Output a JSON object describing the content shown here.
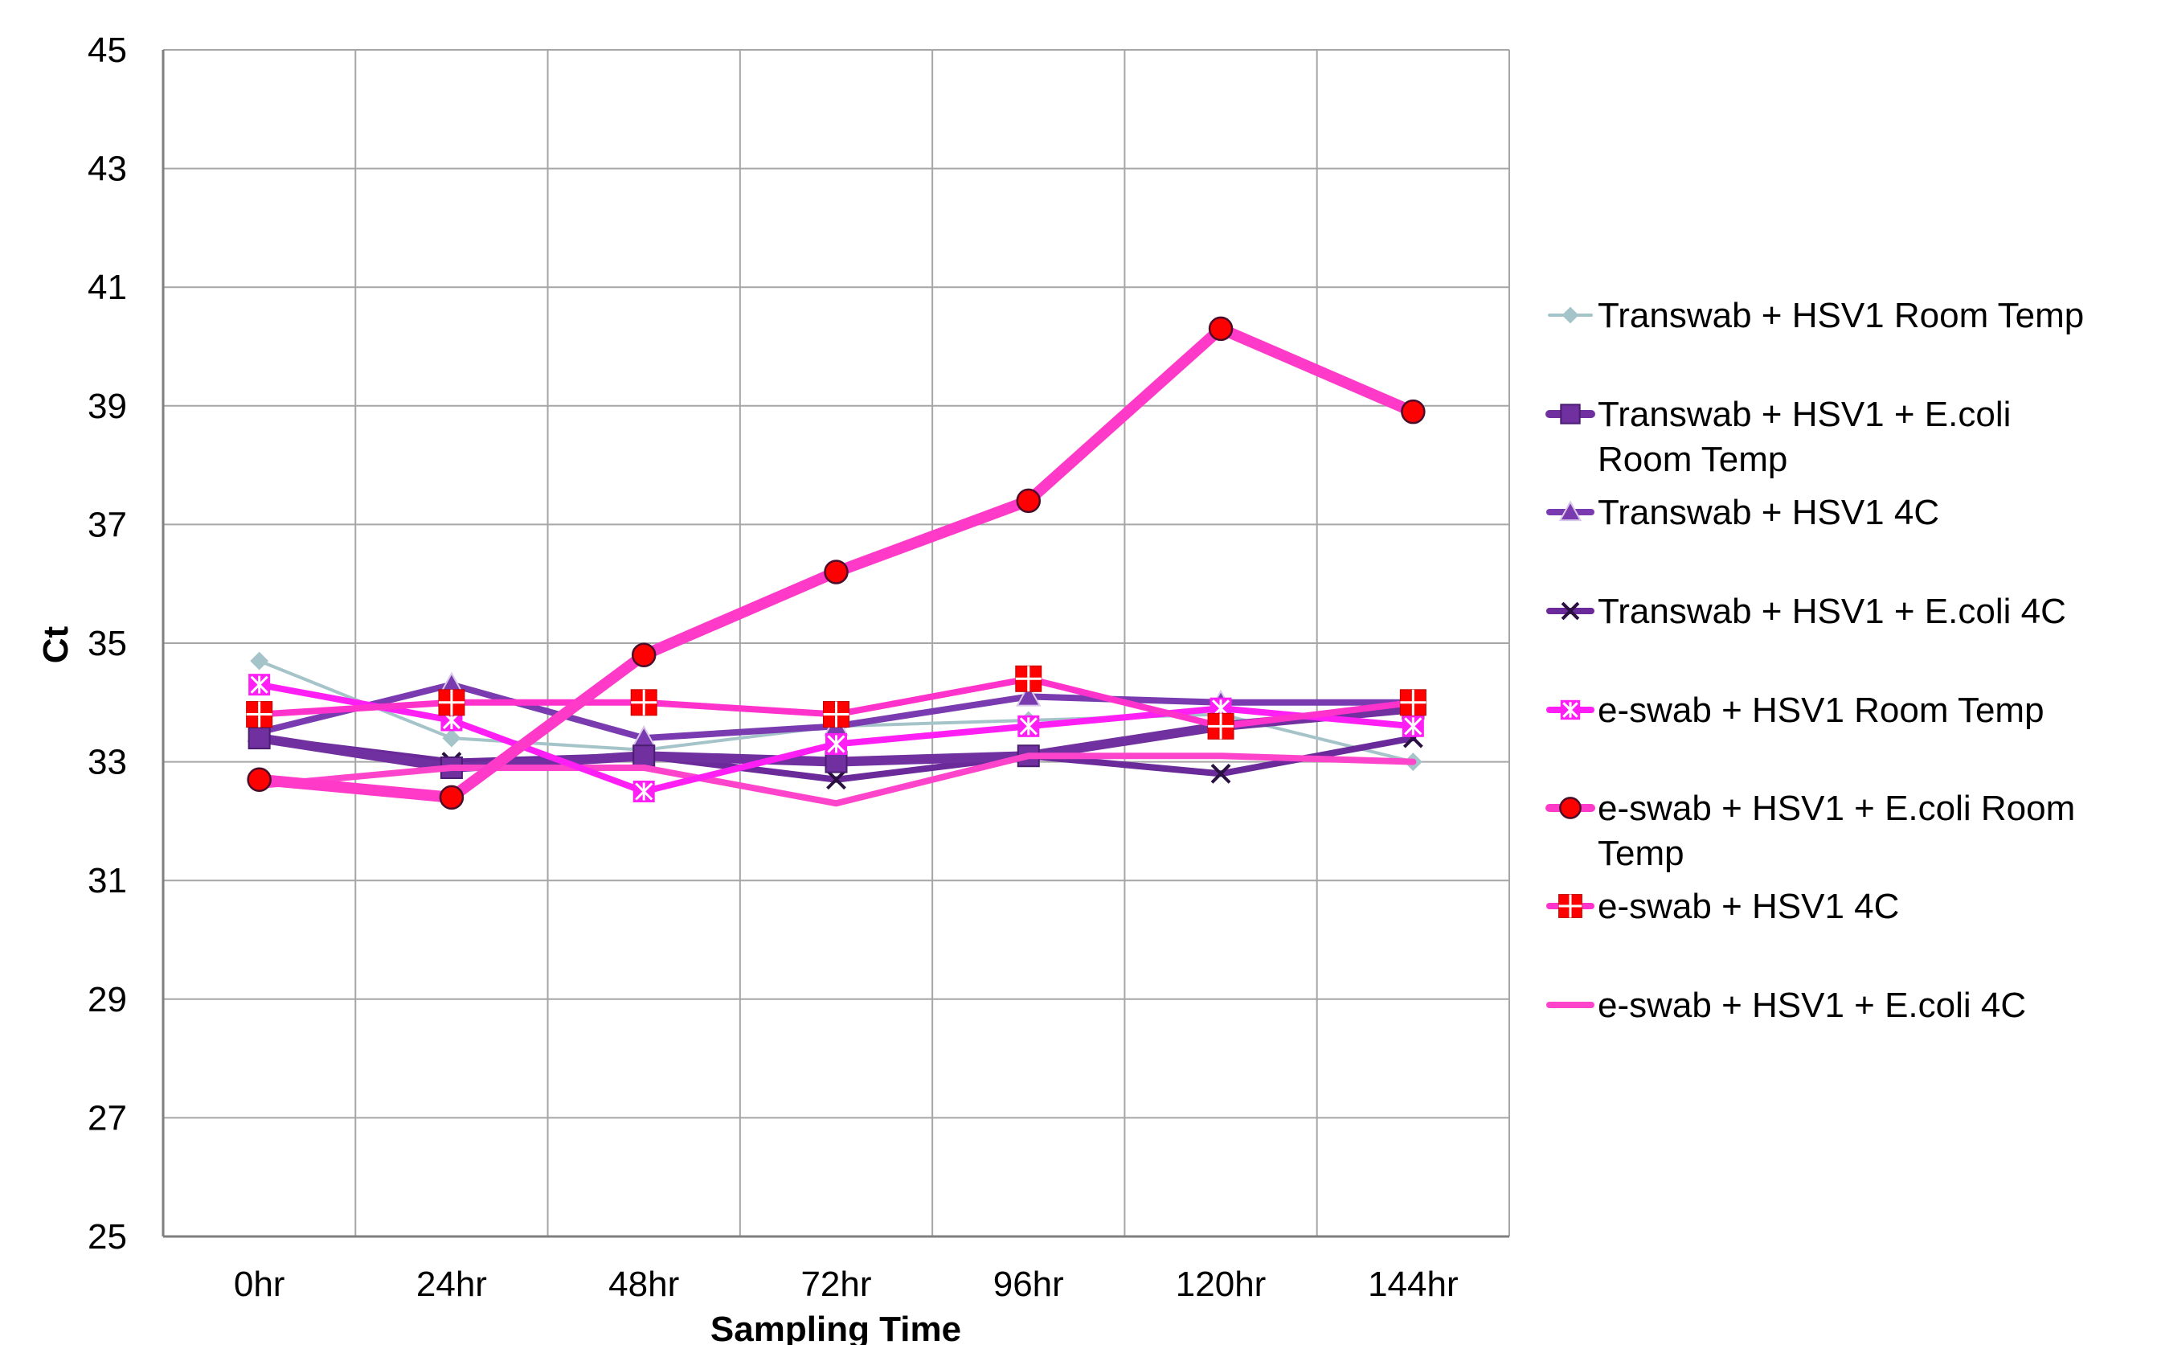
{
  "chart_data": {
    "type": "line",
    "title": "",
    "xlabel": "Sampling Time",
    "ylabel": "Ct",
    "categories": [
      "0hr",
      "24hr",
      "48hr",
      "72hr",
      "96hr",
      "120hr",
      "144hr"
    ],
    "ylim": [
      25,
      45
    ],
    "yticks": [
      25,
      27,
      29,
      31,
      33,
      35,
      37,
      39,
      41,
      43,
      45
    ],
    "grid": true,
    "legend_position": "right",
    "series": [
      {
        "name": "Transwab + HSV1 Room Temp",
        "values": [
          34.7,
          33.4,
          33.2,
          33.6,
          33.7,
          33.8,
          33.0
        ],
        "color": "#a5c4c9",
        "marker": "diamond",
        "width": 4
      },
      {
        "name": "Transwab + HSV1 + E.coli Room Temp",
        "values": [
          33.4,
          32.9,
          33.1,
          33.0,
          33.1,
          33.6,
          33.9
        ],
        "color": "#7030a0",
        "marker": "square",
        "width": 12
      },
      {
        "name": "Transwab + HSV1 4C",
        "values": [
          33.5,
          34.3,
          33.4,
          33.6,
          34.1,
          34.0,
          34.0
        ],
        "color": "#7a3bb0",
        "marker": "triangle",
        "width": 8
      },
      {
        "name": "Transwab + HSV1 + E.coli 4C",
        "values": [
          33.4,
          33.0,
          33.1,
          32.7,
          33.1,
          32.8,
          33.4
        ],
        "color": "#6a2a9a",
        "marker": "x",
        "width": 8
      },
      {
        "name": "e-swab + HSV1 Room Temp",
        "values": [
          34.3,
          33.7,
          32.5,
          33.3,
          33.6,
          33.9,
          33.6
        ],
        "color": "#ff1ff5",
        "marker": "star",
        "width": 8
      },
      {
        "name": "e-swab + HSV1 + E.coli Room Temp",
        "values": [
          32.7,
          32.4,
          34.8,
          36.2,
          37.4,
          40.3,
          38.9
        ],
        "color": "#ff39c8",
        "marker": "circle",
        "width": 14
      },
      {
        "name": "e-swab + HSV1 4C",
        "values": [
          33.8,
          34.0,
          34.0,
          33.8,
          34.4,
          33.6,
          34.0
        ],
        "color": "#ff33cc",
        "marker": "plus-square",
        "width": 8
      },
      {
        "name": "e-swab + HSV1 + E.coli 4C",
        "values": [
          32.6,
          32.9,
          32.9,
          32.3,
          33.1,
          33.1,
          33.0
        ],
        "color": "#ff44cc",
        "marker": "none",
        "width": 8
      }
    ]
  },
  "legend": {
    "lines": [
      [
        "Transwab + HSV1 Room Temp"
      ],
      [
        "Transwab + HSV1 + E.coli",
        "Room Temp"
      ],
      [
        "Transwab + HSV1 4C"
      ],
      [
        "Transwab + HSV1 + E.coli 4C"
      ],
      [
        "e-swab + HSV1 Room Temp"
      ],
      [
        "e-swab + HSV1 + E.coli Room",
        "Temp"
      ],
      [
        "e-swab + HSV1 4C"
      ],
      [
        "e-swab + HSV1 + E.coli 4C"
      ]
    ]
  },
  "colors": {
    "grid": "#a6a6a6",
    "axis": "#7f7f7f",
    "marker_red": "#ff0000",
    "marker_edge": "#5b1a8a"
  }
}
